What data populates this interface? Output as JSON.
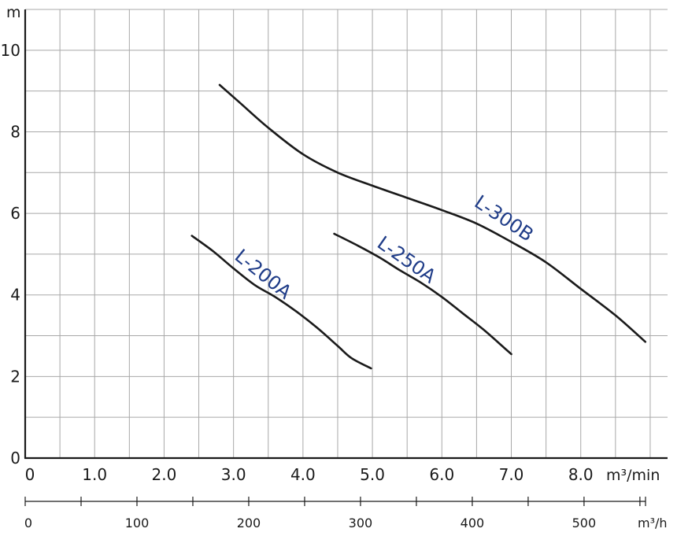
{
  "chart_data": {
    "type": "line",
    "title": "",
    "colors": {
      "curve": "#1a1a1a",
      "label": "#1f3c88",
      "grid": "#a8a8a8"
    },
    "grid": true,
    "x_axis": {
      "unit": "m³/min",
      "range": [
        0,
        9.25
      ],
      "tick_labels": [
        "0",
        "1.0",
        "2.0",
        "3.0",
        "4.0",
        "5.0",
        "6.0",
        "7.0",
        "8.0"
      ],
      "tick_values": [
        0,
        1,
        2,
        3,
        4,
        5,
        6,
        7,
        8
      ],
      "grid_step": 0.5
    },
    "y_axis": {
      "unit": "m",
      "range": [
        0,
        11
      ],
      "tick_labels": [
        "0",
        "2",
        "4",
        "6",
        "8",
        "10"
      ],
      "tick_values": [
        0,
        2,
        4,
        6,
        8,
        10
      ],
      "grid_step": 1
    },
    "secondary_x_axis": {
      "unit": "m³/h",
      "range": [
        0,
        555
      ],
      "tick_labels": [
        "0",
        "100",
        "200",
        "300",
        "400",
        "500"
      ],
      "tick_values": [
        0,
        100,
        200,
        300,
        400,
        500
      ],
      "minor_step": 50
    },
    "series": [
      {
        "name": "L-200A",
        "label_at": [
          3.0,
          4.9
        ],
        "label_angle": 39,
        "x": [
          2.4,
          2.7,
          3.0,
          3.3,
          3.6,
          3.9,
          4.2,
          4.5,
          4.7,
          4.98
        ],
        "y": [
          5.45,
          5.08,
          4.65,
          4.25,
          3.95,
          3.6,
          3.2,
          2.75,
          2.45,
          2.2
        ]
      },
      {
        "name": "L-250A",
        "label_at": [
          5.05,
          5.2
        ],
        "label_angle": 35,
        "x": [
          4.45,
          4.8,
          5.1,
          5.4,
          5.7,
          6.0,
          6.3,
          6.6,
          6.9,
          7.0
        ],
        "y": [
          5.5,
          5.2,
          4.92,
          4.6,
          4.3,
          3.95,
          3.55,
          3.15,
          2.7,
          2.55
        ]
      },
      {
        "name": "L-300B",
        "label_at": [
          6.45,
          6.2
        ],
        "label_angle": 34,
        "x": [
          2.8,
          3.1,
          3.5,
          4.0,
          4.5,
          5.0,
          5.5,
          6.0,
          6.5,
          7.0,
          7.5,
          8.0,
          8.5,
          8.93
        ],
        "y": [
          9.15,
          8.7,
          8.1,
          7.45,
          7.0,
          6.68,
          6.38,
          6.08,
          5.75,
          5.3,
          4.8,
          4.15,
          3.5,
          2.85
        ]
      }
    ]
  }
}
